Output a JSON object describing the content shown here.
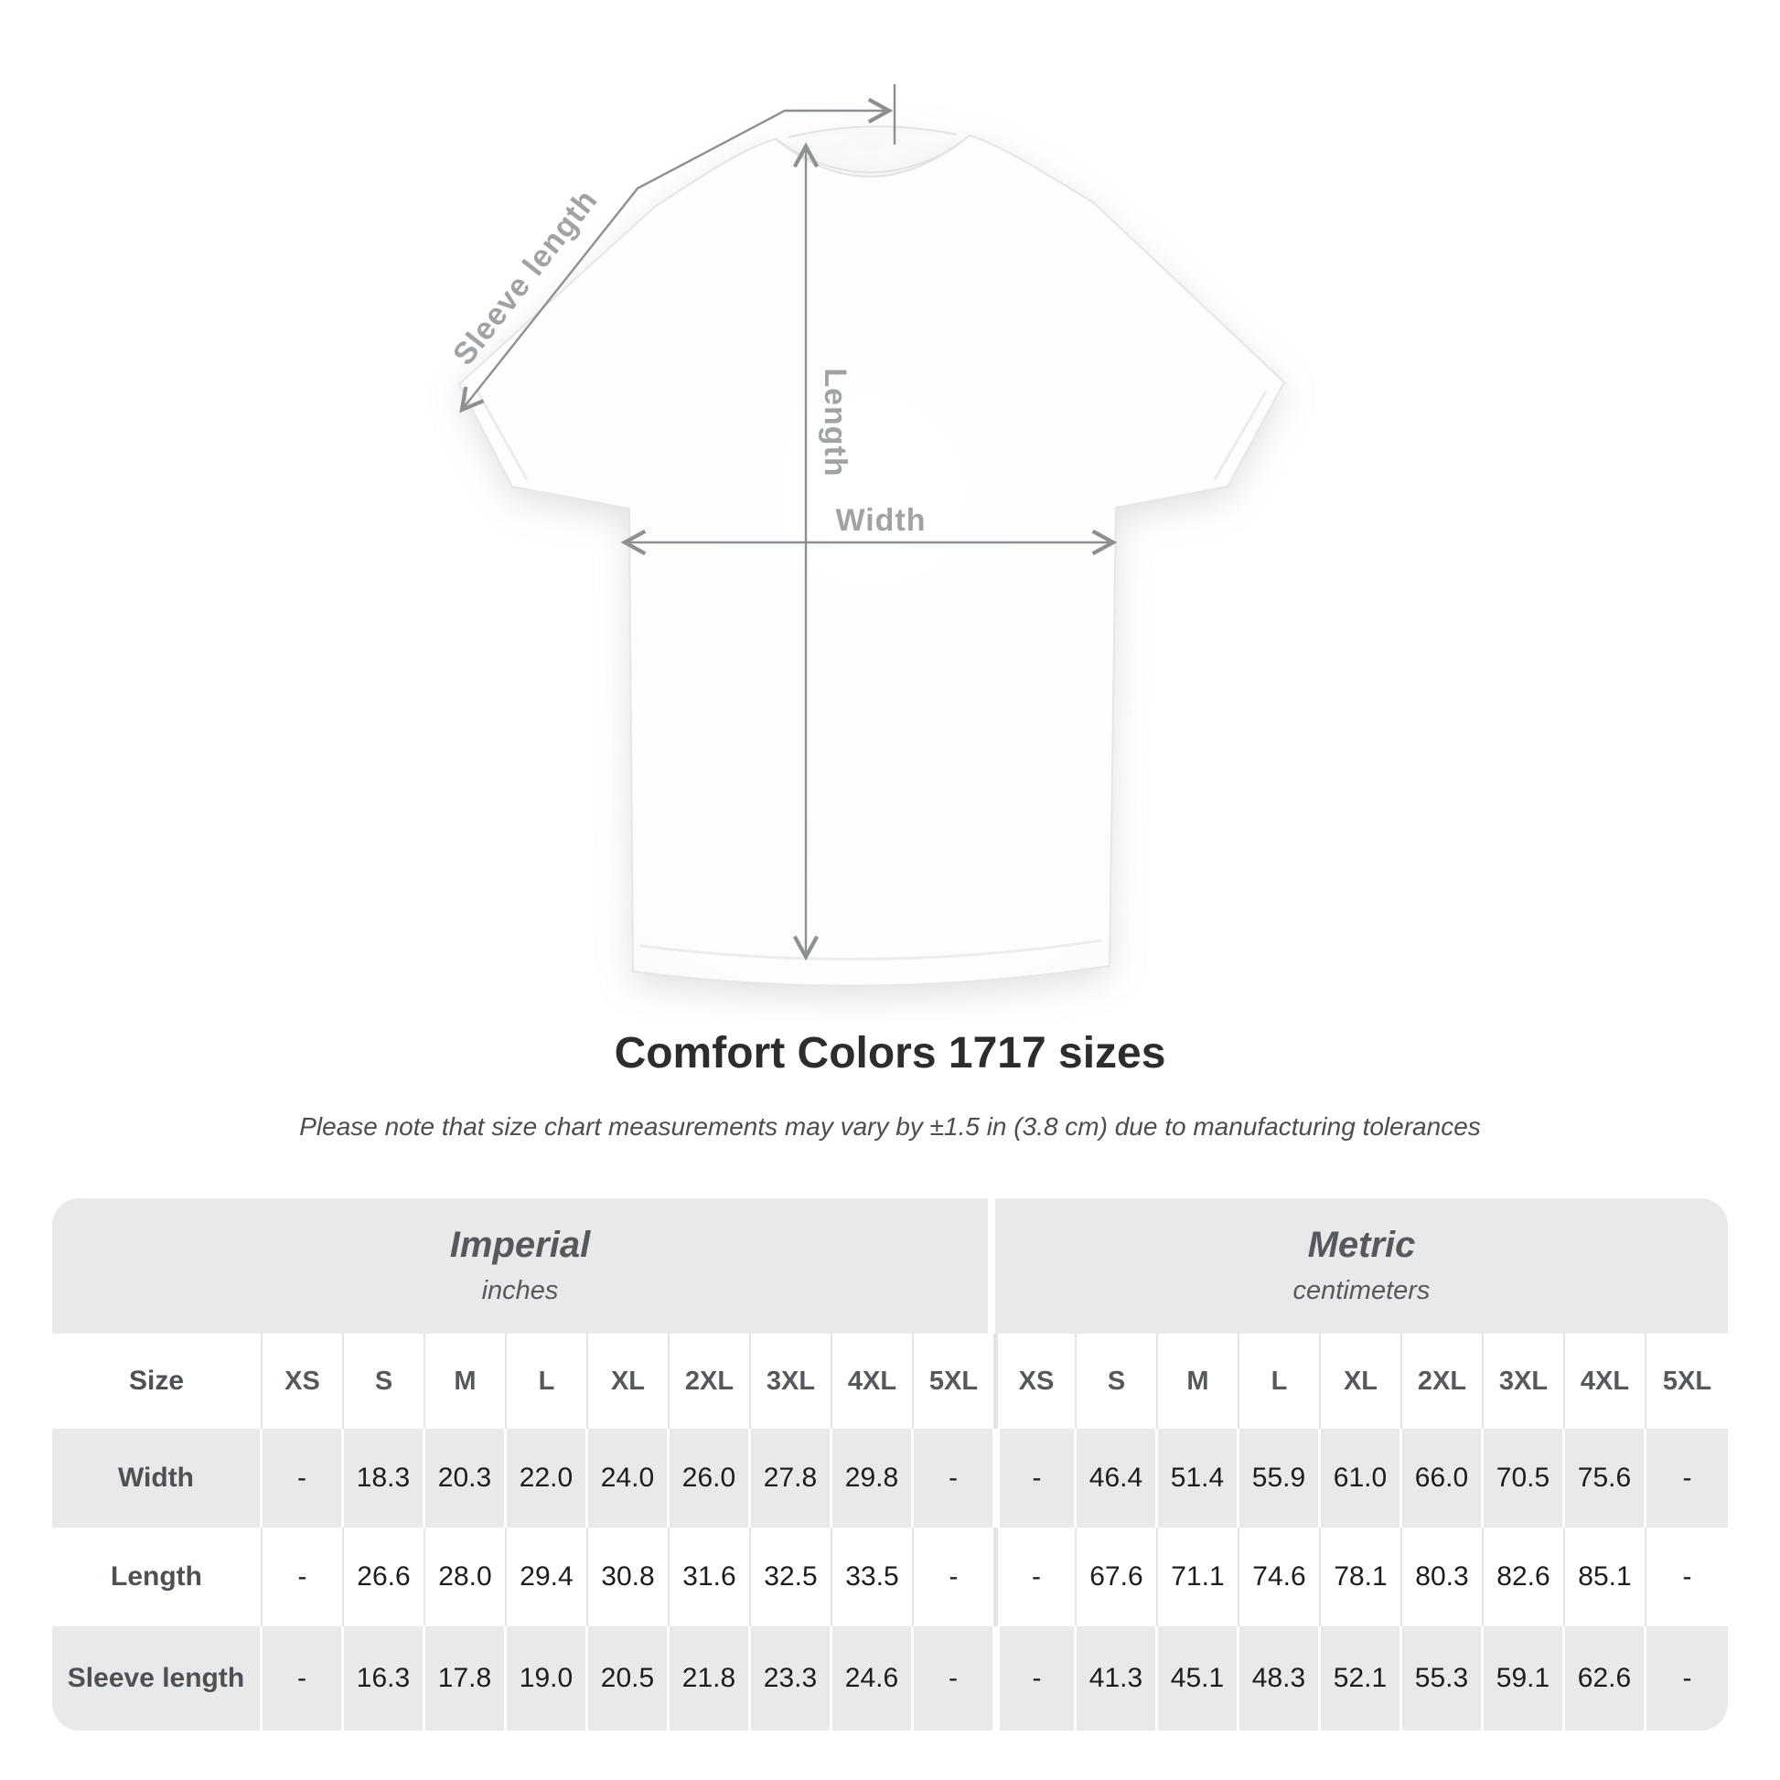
{
  "chart_data": {
    "type": "table",
    "title": "Comfort Colors 1717 sizes",
    "subtitle": "Please note that size chart measurements may vary by ±1.5 in (3.8 cm) due to manufacturing tolerances",
    "diagram_labels": {
      "sleeve_length": "Sleeve length",
      "length": "Length",
      "width": "Width"
    },
    "unit_groups": [
      {
        "label": "Imperial",
        "sublabel": "inches"
      },
      {
        "label": "Metric",
        "sublabel": "centimeters"
      }
    ],
    "size_col_header": "Size",
    "sizes": [
      "XS",
      "S",
      "M",
      "L",
      "XL",
      "2XL",
      "3XL",
      "4XL",
      "5XL"
    ],
    "rows": [
      {
        "label": "Width",
        "imperial": [
          "-",
          "18.3",
          "20.3",
          "22.0",
          "24.0",
          "26.0",
          "27.8",
          "29.8",
          "-"
        ],
        "metric": [
          "-",
          "46.4",
          "51.4",
          "55.9",
          "61.0",
          "66.0",
          "70.5",
          "75.6",
          "-"
        ]
      },
      {
        "label": "Length",
        "imperial": [
          "-",
          "26.6",
          "28.0",
          "29.4",
          "30.8",
          "31.6",
          "32.5",
          "33.5",
          "-"
        ],
        "metric": [
          "-",
          "67.6",
          "71.1",
          "74.6",
          "78.1",
          "80.3",
          "82.6",
          "85.1",
          "-"
        ]
      },
      {
        "label": "Sleeve length",
        "imperial": [
          "-",
          "16.3",
          "17.8",
          "19.0",
          "20.5",
          "21.8",
          "23.3",
          "24.6",
          "-"
        ],
        "metric": [
          "-",
          "41.3",
          "45.1",
          "48.3",
          "52.1",
          "55.3",
          "59.1",
          "62.6",
          "-"
        ]
      }
    ],
    "colors": {
      "table_band_gray": "#e9e9e9",
      "dimension_line_gray": "#8d9092",
      "dimension_label_gray": "#a0a3a5",
      "title_text": "#2d2d2d",
      "value_text": "#1d1d1d"
    }
  }
}
